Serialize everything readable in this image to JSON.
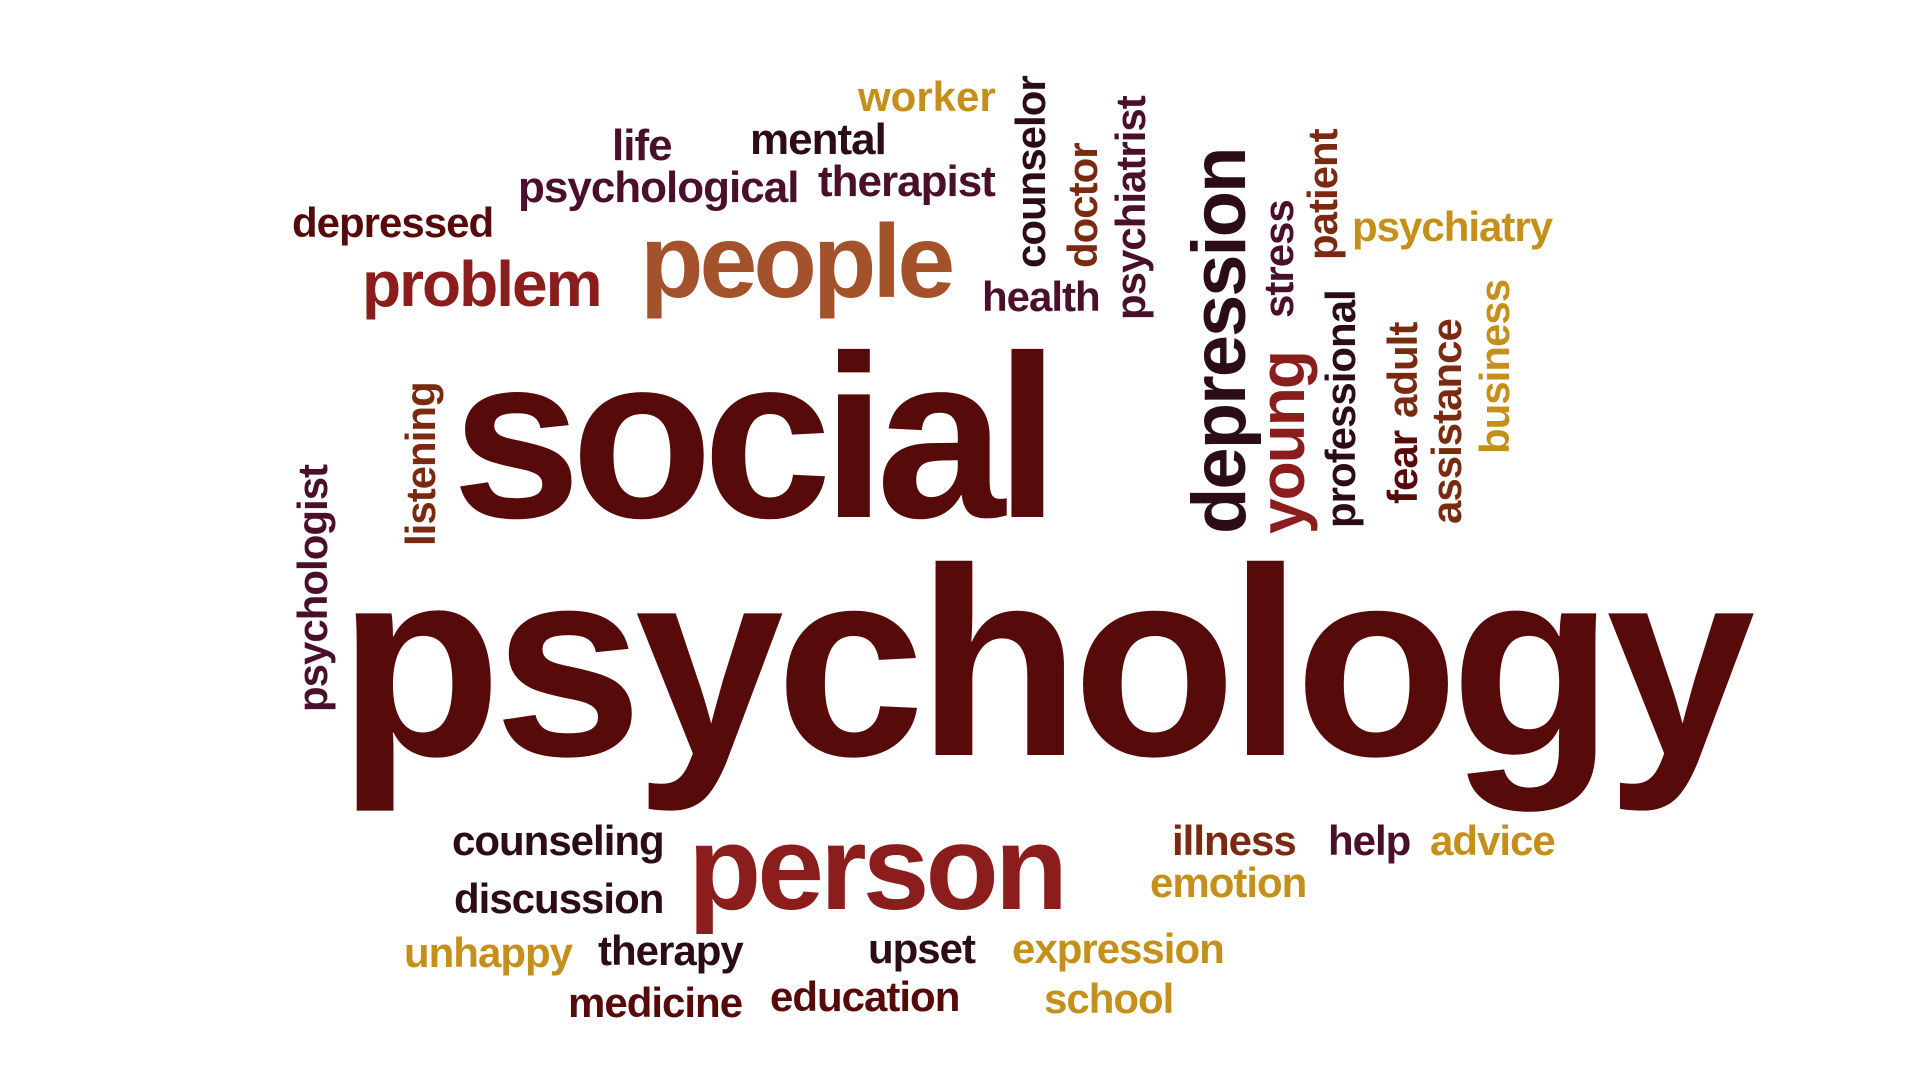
{
  "palette": {
    "maroon": "#560a0a",
    "dark": "#2c0c17",
    "red": "#8c1d1d",
    "orange": "#a4522b",
    "gold": "#c4901b",
    "plum": "#4a0f2a",
    "brown": "#7a2a10"
  },
  "words": [
    {
      "text": "social",
      "color": "maroon"
    },
    {
      "text": "psychology",
      "color": "maroon"
    },
    {
      "text": "people",
      "color": "orange"
    },
    {
      "text": "problem",
      "color": "red"
    },
    {
      "text": "person",
      "color": "red"
    },
    {
      "text": "depression",
      "color": "dark"
    },
    {
      "text": "worker",
      "color": "gold"
    },
    {
      "text": "life",
      "color": "plum"
    },
    {
      "text": "mental",
      "color": "dark"
    },
    {
      "text": "psychological",
      "color": "plum"
    },
    {
      "text": "therapist",
      "color": "plum"
    },
    {
      "text": "depressed",
      "color": "maroon"
    },
    {
      "text": "counselor",
      "color": "dark"
    },
    {
      "text": "doctor",
      "color": "brown"
    },
    {
      "text": "psychiatrist",
      "color": "plum"
    },
    {
      "text": "health",
      "color": "plum"
    },
    {
      "text": "stress",
      "color": "plum"
    },
    {
      "text": "patient",
      "color": "brown"
    },
    {
      "text": "psychiatry",
      "color": "gold"
    },
    {
      "text": "young",
      "color": "red"
    },
    {
      "text": "professional",
      "color": "dark"
    },
    {
      "text": "fear",
      "color": "maroon"
    },
    {
      "text": "adult",
      "color": "brown"
    },
    {
      "text": "assistance",
      "color": "brown"
    },
    {
      "text": "business",
      "color": "gold"
    },
    {
      "text": "listening",
      "color": "brown"
    },
    {
      "text": "psychologist",
      "color": "plum"
    },
    {
      "text": "counseling",
      "color": "dark"
    },
    {
      "text": "discussion",
      "color": "dark"
    },
    {
      "text": "illness",
      "color": "brown"
    },
    {
      "text": "help",
      "color": "plum"
    },
    {
      "text": "advice",
      "color": "gold"
    },
    {
      "text": "emotion",
      "color": "gold"
    },
    {
      "text": "unhappy",
      "color": "gold"
    },
    {
      "text": "therapy",
      "color": "dark"
    },
    {
      "text": "upset",
      "color": "dark"
    },
    {
      "text": "expression",
      "color": "gold"
    },
    {
      "text": "medicine",
      "color": "maroon"
    },
    {
      "text": "education",
      "color": "maroon"
    },
    {
      "text": "school",
      "color": "gold"
    }
  ]
}
